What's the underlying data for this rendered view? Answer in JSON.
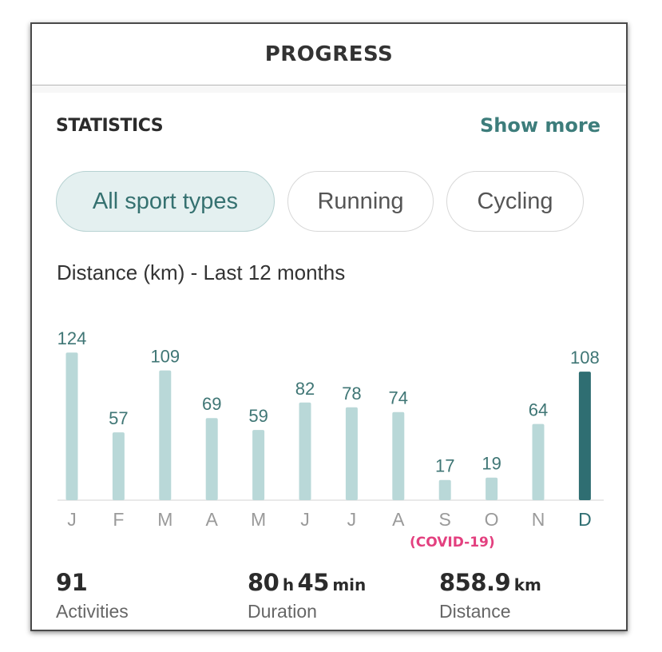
{
  "header": {
    "title": "PROGRESS"
  },
  "statistics": {
    "title": "STATISTICS",
    "show_more": "Show more",
    "filters": [
      {
        "label": "All sport types",
        "active": true
      },
      {
        "label": "Running",
        "active": false
      },
      {
        "label": "Cycling",
        "active": false
      }
    ]
  },
  "chart_data": {
    "type": "bar",
    "title": "Distance (km) - Last 12 months",
    "categories": [
      "J",
      "F",
      "M",
      "A",
      "M",
      "J",
      "J",
      "A",
      "S",
      "O",
      "N",
      "D"
    ],
    "values": [
      124,
      57,
      109,
      69,
      59,
      82,
      78,
      74,
      17,
      19,
      64,
      108
    ],
    "highlight_index": 11,
    "annotation": "(COVID-19)",
    "colors": {
      "bar": "#b9d8d8",
      "highlight": "#2f6e72",
      "label": "#3f7675"
    },
    "grid": false,
    "legend": "none"
  },
  "summary": {
    "activities": {
      "value": "91",
      "caption": "Activities"
    },
    "duration": {
      "hours": "80",
      "hours_unit": "h",
      "minutes": "45",
      "minutes_unit": "min",
      "caption": "Duration"
    },
    "distance": {
      "value": "858.9",
      "unit": "km",
      "caption": "Distance"
    }
  }
}
